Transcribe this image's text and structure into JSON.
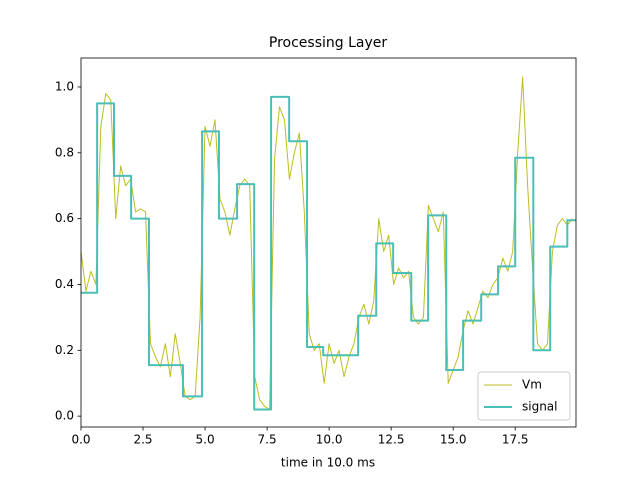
{
  "chart_data": {
    "type": "line",
    "title": "Processing Layer",
    "x_label": "time in 10.0 ms",
    "xlim": [
      0,
      19.95
    ],
    "ylim": [
      -0.033,
      1.088
    ],
    "xticks": [
      {
        "value": 0,
        "label": "0.0"
      },
      {
        "value": 2.5,
        "label": "2.5"
      },
      {
        "value": 5,
        "label": "5.0"
      },
      {
        "value": 7.5,
        "label": "7.5"
      },
      {
        "value": 10,
        "label": "10.0"
      },
      {
        "value": 12.5,
        "label": "12.5"
      },
      {
        "value": 15,
        "label": "15.0"
      },
      {
        "value": 17.5,
        "label": "17.5"
      }
    ],
    "yticks": [
      {
        "value": 0,
        "label": "0.0"
      },
      {
        "value": 0.2,
        "label": "0.2"
      },
      {
        "value": 0.4,
        "label": "0.4"
      },
      {
        "value": 0.6,
        "label": "0.6"
      },
      {
        "value": 0.8,
        "label": "0.8"
      },
      {
        "value": 1,
        "label": "1.0"
      }
    ],
    "grid": false,
    "legend": "lower right",
    "series": [
      {
        "name": "Vm",
        "color": "#bcbd22",
        "width": 1,
        "drawstyle": "default",
        "x": [
          0,
          0.2,
          0.4,
          0.6,
          0.8,
          1,
          1.2,
          1.4,
          1.6,
          1.8,
          2,
          2.2,
          2.4,
          2.6,
          2.8,
          3,
          3.2,
          3.4,
          3.6,
          3.8,
          4,
          4.2,
          4.4,
          4.6,
          4.8,
          5,
          5.2,
          5.4,
          5.6,
          5.8,
          6,
          6.2,
          6.4,
          6.6,
          6.8,
          7,
          7.2,
          7.4,
          7.6,
          7.8,
          8,
          8.2,
          8.4,
          8.6,
          8.8,
          9,
          9.2,
          9.4,
          9.6,
          9.8,
          10,
          10.2,
          10.4,
          10.6,
          10.8,
          11,
          11.2,
          11.4,
          11.6,
          11.8,
          12,
          12.2,
          12.4,
          12.6,
          12.8,
          13,
          13.2,
          13.4,
          13.6,
          13.8,
          14,
          14.2,
          14.4,
          14.6,
          14.8,
          15,
          15.2,
          15.4,
          15.6,
          15.8,
          16,
          16.2,
          16.4,
          16.6,
          16.8,
          17,
          17.2,
          17.4,
          17.6,
          17.8,
          18,
          18.2,
          18.4,
          18.6,
          18.8,
          19,
          19.2,
          19.4,
          19.6,
          19.8
        ],
        "values": [
          0.5,
          0.38,
          0.44,
          0.4,
          0.88,
          0.98,
          0.96,
          0.6,
          0.76,
          0.7,
          0.72,
          0.62,
          0.63,
          0.62,
          0.22,
          0.18,
          0.15,
          0.22,
          0.12,
          0.25,
          0.16,
          0.06,
          0.05,
          0.06,
          0.3,
          0.88,
          0.82,
          0.9,
          0.66,
          0.62,
          0.55,
          0.63,
          0.7,
          0.72,
          0.7,
          0.12,
          0.05,
          0.03,
          0.02,
          0.78,
          0.94,
          0.9,
          0.72,
          0.8,
          0.86,
          0.62,
          0.25,
          0.2,
          0.22,
          0.1,
          0.22,
          0.16,
          0.2,
          0.12,
          0.18,
          0.22,
          0.3,
          0.34,
          0.28,
          0.35,
          0.6,
          0.5,
          0.55,
          0.4,
          0.45,
          0.42,
          0.44,
          0.3,
          0.28,
          0.3,
          0.64,
          0.6,
          0.56,
          0.62,
          0.1,
          0.14,
          0.18,
          0.26,
          0.32,
          0.28,
          0.33,
          0.38,
          0.36,
          0.4,
          0.42,
          0.48,
          0.44,
          0.5,
          0.8,
          1.03,
          0.7,
          0.45,
          0.22,
          0.2,
          0.22,
          0.5,
          0.58,
          0.6,
          0.58,
          0.6
        ]
      },
      {
        "name": "signal",
        "color": "#4bbfb5",
        "width": 2,
        "drawstyle": "steps-post",
        "x": [
          0,
          0.65,
          1.33,
          2.02,
          2.74,
          4.11,
          4.88,
          5.56,
          6.29,
          6.98,
          7.66,
          8.39,
          9.11,
          9.76,
          11.17,
          11.9,
          12.58,
          13.31,
          13.99,
          14.72,
          15.4,
          16.13,
          16.81,
          17.5,
          18.23,
          18.91,
          19.6,
          19.95
        ],
        "values": [
          0.375,
          0.95,
          0.73,
          0.6,
          0.155,
          0.06,
          0.865,
          0.6,
          0.705,
          0.02,
          0.97,
          0.835,
          0.21,
          0.185,
          0.305,
          0.525,
          0.435,
          0.29,
          0.61,
          0.14,
          0.29,
          0.37,
          0.455,
          0.785,
          0.2,
          0.515,
          0.595,
          0.595
        ]
      }
    ]
  }
}
